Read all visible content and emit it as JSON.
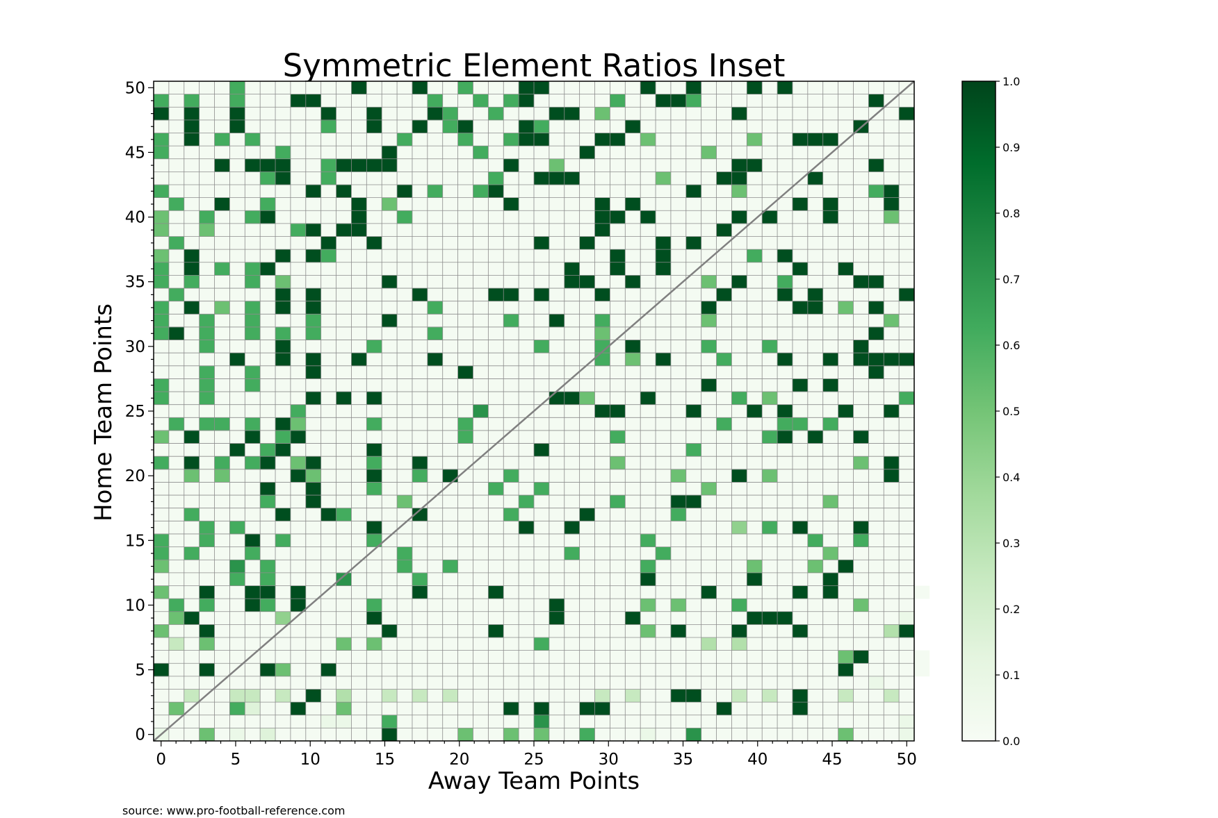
{
  "chart_data": {
    "type": "heatmap",
    "title": "Symmetric Element Ratios Inset",
    "xlabel": "Away Team Points",
    "ylabel": "Home Team Points",
    "xlim": [
      -0.5,
      50.5
    ],
    "ylim": [
      -0.5,
      50.5
    ],
    "x_ticks": [
      0,
      5,
      10,
      15,
      20,
      25,
      30,
      35,
      40,
      45,
      50
    ],
    "y_ticks": [
      0,
      5,
      10,
      15,
      20,
      25,
      30,
      35,
      40,
      45,
      50
    ],
    "x_tick_labels": [
      "0",
      "5",
      "10",
      "15",
      "20",
      "25",
      "30",
      "35",
      "40",
      "45",
      "50"
    ],
    "y_tick_labels": [
      "0",
      "5",
      "10",
      "15",
      "20",
      "25",
      "30",
      "35",
      "40",
      "45",
      "50"
    ],
    "grid": true,
    "diagonal_line": true,
    "colormap": "Greens",
    "colorbar": {
      "range": [
        0.0,
        1.0
      ],
      "ticks": [
        0.0,
        0.1,
        0.2,
        0.3,
        0.4,
        0.5,
        0.6,
        0.7,
        0.8,
        0.9,
        1.0
      ],
      "tick_labels": [
        "0.0",
        "0.1",
        "0.2",
        "0.3",
        "0.4",
        "0.5",
        "0.6",
        "0.7",
        "0.8",
        "0.9",
        "1.0"
      ]
    },
    "colors": {
      "low": "#f7fcf5",
      "mid_low": "#c7e9c0",
      "mid": "#74c476",
      "mid_high": "#238b45",
      "high": "#00441b",
      "grid": "#8c8c8c",
      "diagonal": "#808080"
    },
    "rows_note": "rows[i] holds home team points = i, columns are away team points 0..50; empty cell = no value",
    "rows": [
      "-..5.-.1.......*....5..5.5..6...-..7.........5...-",
      "...........--..6.........7.......................-",
      ".5...61..*..5..........*.*..**.......*....*.......",
      "..2..22.2.*.3..2.2.2.........2.2..**..2.2.*..2..2.",
      "...............................................-..",
      "*..*...*5..*.................................*.....",
      ".............................................5*....",
      ".2.5........5.5..........6..........3.3...........",
      "5..*...........*......*.........5.*...*...*.....3*",
      ".5*.....4.....*...........*....*.......***.......-",
      ".6.6..*6.*....6...........*.....5.5...6.......5...",
      "5..*..**.*.......*....*.............*.....*.*......",
      ".....6.6....7....6..............*......*....*.....",
      "5....7.6........6..6............6......5...5.*....",
      "6.6...6.........6..........6.....6..........5.....",
      "6..6..*.6.....6.................6..........6..6...",
      "...6.6........*.........*..*..........4.6.*...*...",
      "..6.....*..*6....*.....6....*.....6...............",
      ".......6..*.....5.......6.....6...**........5.....",
      ".......*..*...6.......6..6..........5.............",
      "..5.5....*5...*..6.*...6..........5...*.5.......*.",
      "6.*.6.6*.5*...6..*............5...............5.*.",
      ".....*.6*.....*..........*.........6..............",
      "5.*...*.6*..........6.........6.........6*.*..*...",
      ".6.66.6.*5....6.....6................6...66.6.....",
      ".........6...........7.......**....*...*.*...*..*.",
      "6..6......*.*.*...........**5...*.....6.5........6",
      "6..6..6.............................*.....*.*.....",
      "...6..6...*.........*..........................*..",
      ".....*..*.*..*....*..........6.5.*...6...*..*.****",
      "...6....*.....6..........6...6.*....6...6.....*...",
      "6*.6..6.6.6.......6..........5.................*..",
      "6..6..6...6....*.......6..*..6......5...........5.",
      "6.*.5.6.*.*.......6.................*.....**.5.*..",
      ".6......*.*......*....**.*...*.......*...*.*.....*",
      "6.6...6.5......*...........**..*....5.*..6....**..",
      "6.*.6.6*...................*..*..*........*..*....",
      "5.*.....*.*6..................*..*.....6.*........",
      ".6.........*..*..........*..*....*.*..............",
      "5..5.....6*.**...............*.......*............",
      "5..6..6*.....*..6............**.*.....*.*...*...5.",
      ".6..*..6.....*.5.......*.....*.*..........*.*...*.",
      "6.........*.*...*.6..6*............*..5........6*.",
      ".......6*..6..........6..***.....5...**....*......",
      "....*.***..6****.......*..5...........**.......*..",
      "6.......6......*.....6......*.......5.............",
      "6.*.6.6.........6...6..6**...**.5......5..***.....",
      "..*..*.....6..*..*.6*...*6.....*..............*...",
      "*.*..*.....*..*...*6..6...**.5........*..........*",
      "6.6..6...**.......6..6.6*.....6..**6...........*..",
      ".....6.......*...*..6...**......*..*...*.*........"
    ],
    "levels": {
      ".": 0.02,
      "-": 0.08,
      "1": 0.15,
      "2": 0.25,
      "3": 0.32,
      "4": 0.42,
      "5": 0.52,
      "6": 0.62,
      "7": 0.72,
      "*": 0.97
    }
  },
  "source_note": "source: www.pro-football-reference.com"
}
